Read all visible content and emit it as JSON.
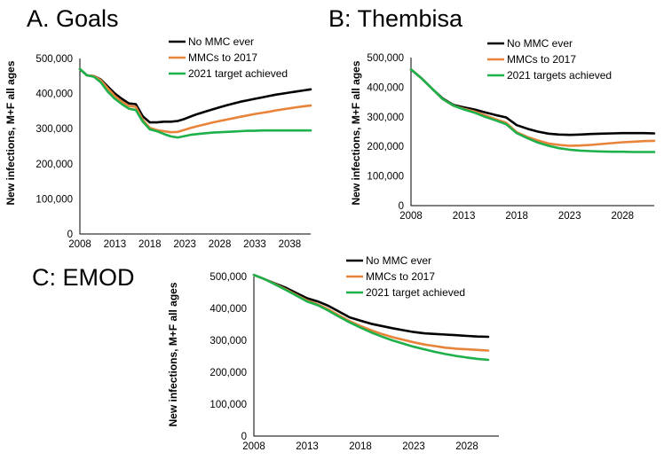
{
  "colors": {
    "no_mmc": "#000000",
    "mmc2017": "#E8833A",
    "target": "#1DB04B"
  },
  "chart_data": [
    {
      "type": "line",
      "title": "A. Goals",
      "ylabel": "New infections, M+F all ages",
      "xlabel": "",
      "xlim": [
        2008,
        2041
      ],
      "ylim": [
        0,
        500000
      ],
      "x_ticks": [
        "2008",
        "2013",
        "2018",
        "2023",
        "2028",
        "2033",
        "2038"
      ],
      "y_ticks": [
        "0",
        "100,000",
        "200,000",
        "300,000",
        "400,000",
        "500,000"
      ],
      "series": [
        {
          "name": "No MMC ever",
          "color": "#000000",
          "x": [
            2008,
            2009,
            2010,
            2011,
            2012,
            2013,
            2014,
            2015,
            2016,
            2017,
            2018,
            2019,
            2020,
            2021,
            2022,
            2023,
            2024,
            2025,
            2026,
            2027,
            2028,
            2029,
            2030,
            2031,
            2032,
            2033,
            2034,
            2035,
            2036,
            2037,
            2038,
            2039,
            2040,
            2041
          ],
          "values": [
            470000,
            452000,
            450000,
            440000,
            420000,
            400000,
            385000,
            372000,
            370000,
            335000,
            318000,
            318000,
            320000,
            320000,
            322000,
            328000,
            336000,
            343000,
            349000,
            355000,
            361000,
            367000,
            372000,
            377000,
            381000,
            385000,
            389000,
            393000,
            397000,
            400000,
            403000,
            406000,
            409000,
            412000
          ]
        },
        {
          "name": "MMCs to 2017",
          "color": "#E8833A",
          "x": [
            2008,
            2009,
            2010,
            2011,
            2012,
            2013,
            2014,
            2015,
            2016,
            2017,
            2018,
            2019,
            2020,
            2021,
            2022,
            2023,
            2024,
            2025,
            2026,
            2027,
            2028,
            2029,
            2030,
            2031,
            2032,
            2033,
            2034,
            2035,
            2036,
            2037,
            2038,
            2039,
            2040,
            2041
          ],
          "values": [
            470000,
            452000,
            450000,
            438000,
            415000,
            393000,
            377000,
            365000,
            362000,
            325000,
            302000,
            296000,
            293000,
            290000,
            291000,
            297000,
            303000,
            308000,
            313000,
            318000,
            322000,
            326000,
            330000,
            334000,
            338000,
            342000,
            345000,
            348000,
            352000,
            355000,
            358000,
            361000,
            364000,
            366000
          ]
        },
        {
          "name": "2021 target achieved",
          "color": "#1DB04B",
          "x": [
            2008,
            2009,
            2010,
            2011,
            2012,
            2013,
            2014,
            2015,
            2016,
            2017,
            2018,
            2019,
            2020,
            2021,
            2022,
            2023,
            2024,
            2025,
            2026,
            2027,
            2028,
            2029,
            2030,
            2031,
            2032,
            2033,
            2034,
            2035,
            2036,
            2037,
            2038,
            2039,
            2040,
            2041
          ],
          "values": [
            470000,
            452000,
            448000,
            432000,
            405000,
            385000,
            370000,
            357000,
            353000,
            320000,
            298000,
            293000,
            285000,
            278000,
            275000,
            279000,
            283000,
            285000,
            287000,
            289000,
            290000,
            291000,
            292000,
            293000,
            294000,
            294000,
            295000,
            295000,
            295000,
            295000,
            295000,
            295000,
            295000,
            295000
          ]
        }
      ]
    },
    {
      "type": "line",
      "title": "B: Thembisa",
      "ylabel": "New infections, M+F all ages",
      "xlabel": "",
      "xlim": [
        2008,
        2031
      ],
      "ylim": [
        0,
        500000
      ],
      "x_ticks": [
        "2008",
        "2013",
        "2018",
        "2023",
        "2028"
      ],
      "y_ticks": [
        "0",
        "100,000",
        "200,000",
        "300,000",
        "400,000",
        "500,000"
      ],
      "series": [
        {
          "name": "No MMC ever",
          "color": "#000000",
          "x": [
            2008,
            2009,
            2010,
            2011,
            2012,
            2013,
            2014,
            2015,
            2016,
            2017,
            2018,
            2019,
            2020,
            2021,
            2022,
            2023,
            2024,
            2025,
            2026,
            2027,
            2028,
            2029,
            2030,
            2031
          ],
          "values": [
            460000,
            430000,
            395000,
            362000,
            340000,
            332000,
            325000,
            315000,
            306000,
            298000,
            272000,
            260000,
            250000,
            243000,
            240000,
            239000,
            240000,
            242000,
            243000,
            244000,
            245000,
            245000,
            245000,
            244000
          ]
        },
        {
          "name": "MMCs to 2017",
          "color": "#E8833A",
          "x": [
            2008,
            2009,
            2010,
            2011,
            2012,
            2013,
            2014,
            2015,
            2016,
            2017,
            2018,
            2019,
            2020,
            2021,
            2022,
            2023,
            2024,
            2025,
            2026,
            2027,
            2028,
            2029,
            2030,
            2031
          ],
          "values": [
            460000,
            430000,
            395000,
            360000,
            338000,
            327000,
            318000,
            305000,
            292000,
            280000,
            248000,
            232000,
            220000,
            210000,
            205000,
            202000,
            203000,
            205000,
            208000,
            211000,
            214000,
            216000,
            218000,
            219000
          ]
        },
        {
          "name": "2021 targets achieved",
          "color": "#1DB04B",
          "x": [
            2008,
            2009,
            2010,
            2011,
            2012,
            2013,
            2014,
            2015,
            2016,
            2017,
            2018,
            2019,
            2020,
            2021,
            2022,
            2023,
            2024,
            2025,
            2026,
            2027,
            2028,
            2029,
            2030,
            2031
          ],
          "values": [
            460000,
            430000,
            395000,
            360000,
            338000,
            325000,
            314000,
            300000,
            288000,
            275000,
            245000,
            228000,
            213000,
            202000,
            194000,
            189000,
            186000,
            184000,
            183000,
            182000,
            182000,
            181000,
            181000,
            181000
          ]
        }
      ]
    },
    {
      "type": "line",
      "title": "C: EMOD",
      "ylabel": "New infections, M+F all ages",
      "xlabel": "",
      "xlim": [
        2008,
        2031
      ],
      "ylim": [
        0,
        500000
      ],
      "x_ticks": [
        "2008",
        "2013",
        "2018",
        "2023",
        "2028"
      ],
      "y_ticks": [
        "0",
        "100,000",
        "200,000",
        "300,000",
        "400,000",
        "500,000"
      ],
      "series": [
        {
          "name": "No MMC ever",
          "color": "#000000",
          "x": [
            2008,
            2009,
            2010,
            2011,
            2012,
            2013,
            2014,
            2015,
            2016,
            2017,
            2018,
            2019,
            2020,
            2021,
            2022,
            2023,
            2024,
            2025,
            2026,
            2027,
            2028,
            2029,
            2030
          ],
          "values": [
            505000,
            492000,
            478000,
            465000,
            448000,
            432000,
            422000,
            408000,
            390000,
            372000,
            362000,
            352000,
            345000,
            338000,
            332000,
            326000,
            322000,
            320000,
            318000,
            316000,
            314000,
            312000,
            311000
          ]
        },
        {
          "name": "MMCs to 2017",
          "color": "#E8833A",
          "x": [
            2008,
            2009,
            2010,
            2011,
            2012,
            2013,
            2014,
            2015,
            2016,
            2017,
            2018,
            2019,
            2020,
            2021,
            2022,
            2023,
            2024,
            2025,
            2026,
            2027,
            2028,
            2029,
            2030
          ],
          "values": [
            505000,
            492000,
            476000,
            460000,
            442000,
            425000,
            413000,
            397000,
            378000,
            360000,
            345000,
            332000,
            320000,
            310000,
            302000,
            294000,
            287000,
            282000,
            277000,
            274000,
            272000,
            270000,
            268000
          ]
        },
        {
          "name": "2021 target achieved",
          "color": "#1DB04B",
          "x": [
            2008,
            2009,
            2010,
            2011,
            2012,
            2013,
            2014,
            2015,
            2016,
            2017,
            2018,
            2019,
            2020,
            2021,
            2022,
            2023,
            2024,
            2025,
            2026,
            2027,
            2028,
            2029,
            2030
          ],
          "values": [
            505000,
            492000,
            475000,
            458000,
            440000,
            422000,
            410000,
            393000,
            374000,
            356000,
            340000,
            325000,
            312000,
            300000,
            290000,
            280000,
            272000,
            264000,
            257000,
            251000,
            246000,
            242000,
            239000
          ]
        }
      ]
    }
  ]
}
